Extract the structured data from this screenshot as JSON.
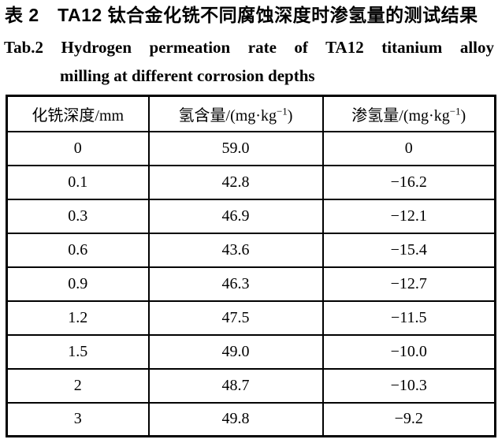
{
  "title": {
    "zh": "表 2　TA12 钛合金化铣不同腐蚀深度时渗氢量的测试结果",
    "en_line1": "Tab.2 Hydrogen permeation rate of TA12 titanium alloy",
    "en_line2": "milling at different corrosion depths"
  },
  "table": {
    "columns": [
      {
        "label": "化铣深度/mm"
      },
      {
        "label_prefix": "氢含量/(mg·kg",
        "label_sup": "−1",
        "label_suffix": ")"
      },
      {
        "label_prefix": "渗氢量/(mg·kg",
        "label_sup": "−1",
        "label_suffix": ")"
      }
    ],
    "rows": [
      [
        "0",
        "59.0",
        "0"
      ],
      [
        "0.1",
        "42.8",
        "−16.2"
      ],
      [
        "0.3",
        "46.9",
        "−12.1"
      ],
      [
        "0.6",
        "43.6",
        "−15.4"
      ],
      [
        "0.9",
        "46.3",
        "−12.7"
      ],
      [
        "1.2",
        "47.5",
        "−11.5"
      ],
      [
        "1.5",
        "49.0",
        "−10.0"
      ],
      [
        "2",
        "48.7",
        "−10.3"
      ],
      [
        "3",
        "49.8",
        "−9.2"
      ]
    ]
  },
  "colors": {
    "text": "#000000",
    "border": "#000000",
    "background": "#ffffff"
  }
}
